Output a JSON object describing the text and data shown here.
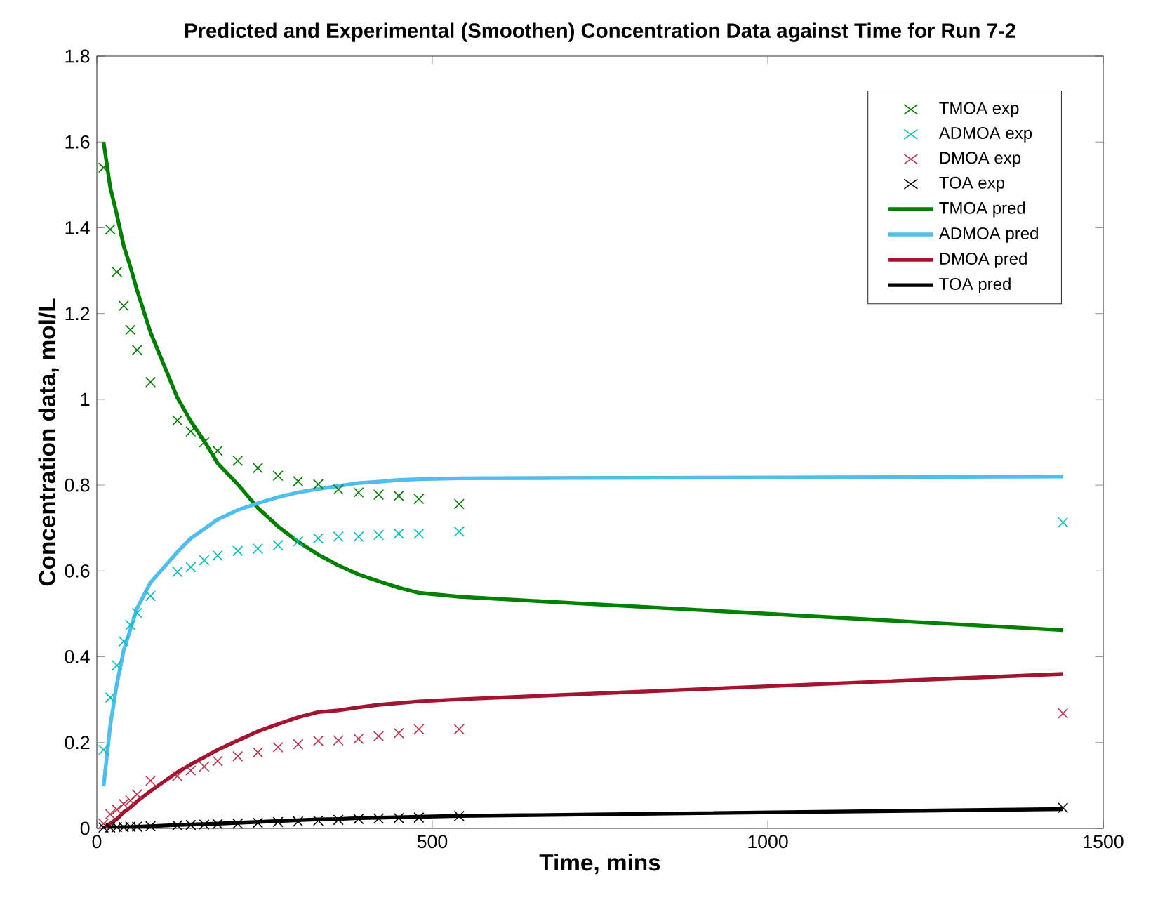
{
  "chart_data": {
    "type": "line",
    "title": "Predicted and Experimental (Smoothen) Concentration Data against Time for Run 7-2",
    "xlabel": "Time, mins",
    "ylabel": "Concentration data, mol/L",
    "xlim": [
      0,
      1500
    ],
    "ylim": [
      0,
      1.8
    ],
    "xticks": [
      0,
      500,
      1000,
      1500
    ],
    "yticks": [
      0,
      0.2,
      0.4,
      0.6,
      0.8,
      1,
      1.2,
      1.4,
      1.6,
      1.8
    ],
    "legend": "top right",
    "x": [
      10,
      20,
      30,
      40,
      50,
      60,
      80,
      120,
      140,
      160,
      180,
      210,
      240,
      270,
      300,
      330,
      360,
      390,
      420,
      450,
      480,
      540,
      1440
    ],
    "series": [
      {
        "name": "TMOA exp",
        "type": "scatter",
        "marker": "cross",
        "color": "#008000",
        "values": [
          1.54,
          1.396,
          1.297,
          1.218,
          1.162,
          1.115,
          1.04,
          0.951,
          0.925,
          0.9,
          0.88,
          0.857,
          0.84,
          0.822,
          0.809,
          0.802,
          0.79,
          0.783,
          0.778,
          0.775,
          0.768,
          0.756,
          null
        ]
      },
      {
        "name": "ADMOA exp",
        "type": "scatter",
        "marker": "cross",
        "color": "#00bfbf",
        "values": [
          0.183,
          0.305,
          0.38,
          0.436,
          0.474,
          0.502,
          0.542,
          0.598,
          0.609,
          0.625,
          0.636,
          0.647,
          0.652,
          0.66,
          0.669,
          0.676,
          0.68,
          0.68,
          0.684,
          0.687,
          0.687,
          0.692,
          0.713
        ]
      },
      {
        "name": "DMOA exp",
        "type": "scatter",
        "marker": "cross",
        "color": "#c0304a",
        "values": [
          0.011,
          0.033,
          0.044,
          0.057,
          0.065,
          0.079,
          0.111,
          0.122,
          0.135,
          0.144,
          0.157,
          0.168,
          0.177,
          0.189,
          0.196,
          0.204,
          0.205,
          0.209,
          0.215,
          0.222,
          0.231,
          0.231,
          0.268
        ]
      },
      {
        "name": "TOA exp",
        "type": "scatter",
        "marker": "cross",
        "color": "#000000",
        "values": [
          0.002,
          0.002,
          0.003,
          0.003,
          0.004,
          0.004,
          0.005,
          0.007,
          0.008,
          0.009,
          0.01,
          0.011,
          0.013,
          0.015,
          0.016,
          0.018,
          0.02,
          0.022,
          0.023,
          0.024,
          0.025,
          0.029,
          0.048
        ]
      },
      {
        "name": "TMOA pred",
        "color": "#008000",
        "values": [
          1.6,
          1.494,
          1.429,
          1.358,
          1.309,
          1.254,
          1.156,
          1.004,
          0.949,
          0.903,
          0.851,
          0.802,
          0.747,
          0.704,
          0.668,
          0.638,
          0.613,
          0.592,
          0.576,
          0.561,
          0.549,
          0.54,
          0.462
        ]
      },
      {
        "name": "ADMOA pred",
        "color": "#4dbeee",
        "values": [
          0.098,
          0.24,
          0.338,
          0.415,
          0.464,
          0.513,
          0.573,
          0.644,
          0.676,
          0.698,
          0.72,
          0.742,
          0.758,
          0.772,
          0.783,
          0.791,
          0.798,
          0.805,
          0.808,
          0.812,
          0.814,
          0.816,
          0.82
        ]
      },
      {
        "name": "DMOA pred",
        "color": "#a2142f",
        "values": [
          0.0,
          0.011,
          0.022,
          0.038,
          0.049,
          0.063,
          0.087,
          0.131,
          0.149,
          0.166,
          0.183,
          0.205,
          0.226,
          0.243,
          0.259,
          0.271,
          0.275,
          0.282,
          0.288,
          0.292,
          0.296,
          0.301,
          0.36
        ]
      },
      {
        "name": "TOA pred",
        "color": "#000000",
        "values": [
          0.0,
          0.001,
          0.002,
          0.003,
          0.003,
          0.004,
          0.005,
          0.008,
          0.009,
          0.01,
          0.011,
          0.013,
          0.015,
          0.017,
          0.019,
          0.021,
          0.022,
          0.024,
          0.025,
          0.026,
          0.027,
          0.029,
          0.045
        ]
      }
    ]
  }
}
